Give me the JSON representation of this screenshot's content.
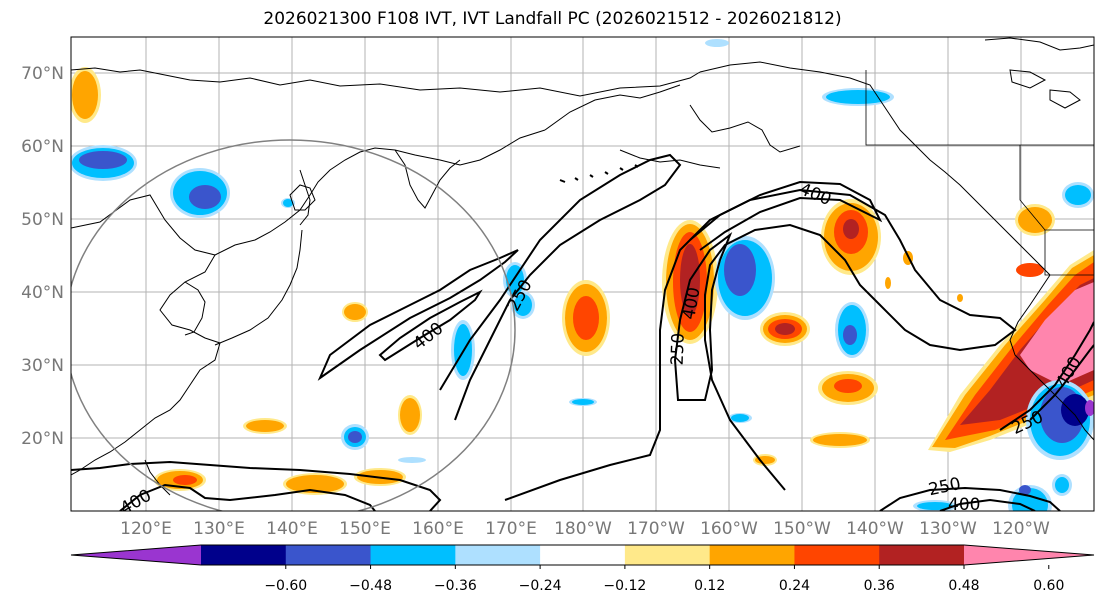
{
  "title": "2026021300 F108 IVT, IVT Landfall PC (2026021512 - 2026021812)",
  "map": {
    "lat_ticks": [
      "70°N",
      "60°N",
      "50°N",
      "40°N",
      "30°N",
      "20°N"
    ],
    "lon_ticks": [
      "120°E",
      "130°E",
      "140°E",
      "150°E",
      "160°E",
      "170°E",
      "180°W",
      "170°W",
      "160°W",
      "150°W",
      "140°W",
      "130°W",
      "120°W"
    ],
    "contour_levels": [
      "250",
      "400"
    ],
    "contour_labels": [
      "400",
      "250",
      "400",
      "250",
      "400",
      "400",
      "250",
      "250",
      "250",
      "400",
      "400"
    ]
  },
  "colorbar": {
    "colors": [
      "#9a35d0",
      "#00008b",
      "#3a55cc",
      "#00bfff",
      "#aee0ff",
      "#ffffff",
      "#ffe98a",
      "#ffa500",
      "#ff4500",
      "#b22222",
      "#ff85ad"
    ],
    "tick_labels": [
      "−0.60",
      "−0.48",
      "−0.36",
      "−0.24",
      "−0.12",
      "0.12",
      "0.24",
      "0.36",
      "0.48",
      "0.60"
    ]
  }
}
